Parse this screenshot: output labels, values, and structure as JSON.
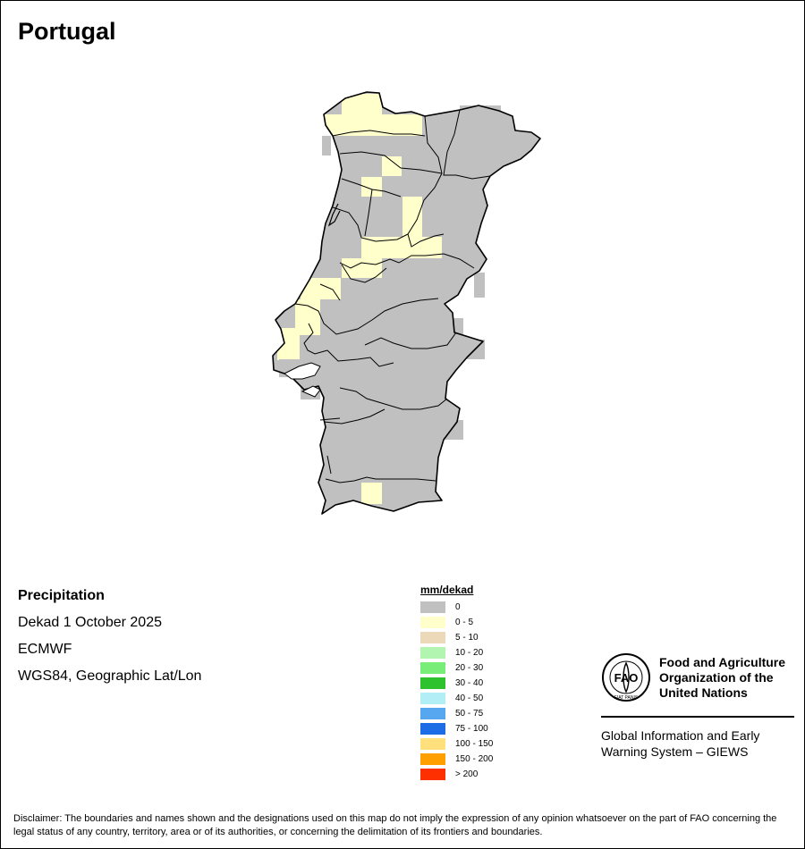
{
  "title": "Portugal",
  "info": {
    "variable": "Precipitation",
    "period": "Dekad 1 October 2025",
    "source": "ECMWF",
    "projection": "WGS84, Geographic Lat/Lon"
  },
  "legend": {
    "title": "mm/dekad",
    "classes": [
      {
        "label": "0",
        "color": "#c0c0c0"
      },
      {
        "label": "0 - 5",
        "color": "#ffffcc"
      },
      {
        "label": "5 - 10",
        "color": "#ecd9b9"
      },
      {
        "label": "10 - 20",
        "color": "#b2f5b0"
      },
      {
        "label": "20 - 30",
        "color": "#78ee78"
      },
      {
        "label": "30 - 40",
        "color": "#2fc22f"
      },
      {
        "label": "40 - 50",
        "color": "#b2eef6"
      },
      {
        "label": "50 - 75",
        "color": "#56a6f0"
      },
      {
        "label": "75 - 100",
        "color": "#1c6ce6"
      },
      {
        "label": "100 - 150",
        "color": "#ffe07c"
      },
      {
        "label": "150 - 200",
        "color": "#ff9f00"
      },
      {
        "label": "> 200",
        "color": "#ff3000"
      }
    ]
  },
  "fao": {
    "name_line1": "Food and Agriculture",
    "name_line2": "Organization of the",
    "name_line3": "United Nations",
    "logo_text": "FAO",
    "logo_ring_text": "FIAT PANIS",
    "giews_line1": "Global Information and Early",
    "giews_line2": "Warning System – GIEWS"
  },
  "disclaimer": "Disclaimer: The boundaries and names shown and the designations used on this map do not imply the expression of any opinion whatsoever on the part of FAO concerning the legal status of any country, territory, area or of its authorities, or concerning the delimitation of its frontiers and boundaries."
}
